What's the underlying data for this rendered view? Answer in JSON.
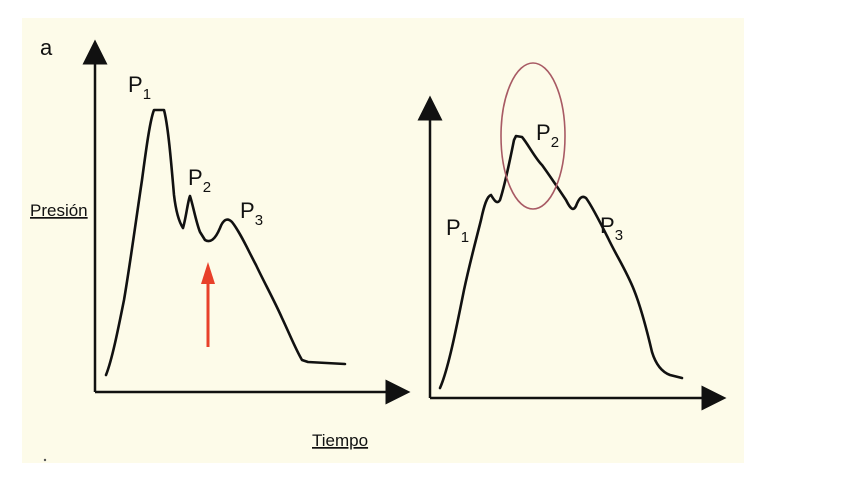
{
  "figure_letter": "a",
  "axis_y_label": "Presión",
  "axis_x_label": "Tiempo",
  "peak_base": "P",
  "left_panel": {
    "peaks": [
      {
        "base": "P",
        "sub": "1"
      },
      {
        "base": "P",
        "sub": "2"
      },
      {
        "base": "P",
        "sub": "3"
      }
    ]
  },
  "right_panel": {
    "peaks": [
      {
        "base": "P",
        "sub": "1"
      },
      {
        "base": "P",
        "sub": "2"
      },
      {
        "base": "P",
        "sub": "3"
      }
    ]
  },
  "colors": {
    "panel_background": "#fdfbe9",
    "curve": "#111111",
    "arrow": "#e8402a",
    "circle": "#a85a64"
  }
}
